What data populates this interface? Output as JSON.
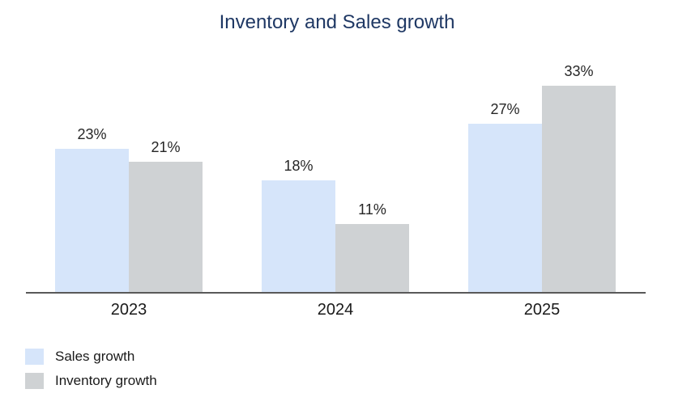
{
  "chart_data": {
    "type": "bar",
    "title": "Inventory and Sales growth",
    "categories": [
      "2023",
      "2024",
      "2025"
    ],
    "series": [
      {
        "name": "Sales growth",
        "values": [
          23,
          18,
          27
        ],
        "labels": [
          "23%",
          "18%",
          "27%"
        ],
        "color": "#D6E5FA"
      },
      {
        "name": "Inventory growth",
        "values": [
          21,
          11,
          33
        ],
        "labels": [
          "21%",
          "11%",
          "33%"
        ],
        "color": "#CFD2D4"
      }
    ],
    "xlabel": "",
    "ylabel": "",
    "ylim": [
      0,
      35
    ],
    "unit": "%",
    "grid": false,
    "y_axis_visible": false,
    "x_baseline_visible": true,
    "legend_position": "bottom-left",
    "data_labels_position": "above-bars"
  },
  "colors": {
    "title_text": "#1F3864",
    "data_label_text": "#262626",
    "category_label_text": "#1A1A1A",
    "legend_text": "#1A1A1A",
    "axis_line": "#595959",
    "background": "#FFFFFF"
  }
}
